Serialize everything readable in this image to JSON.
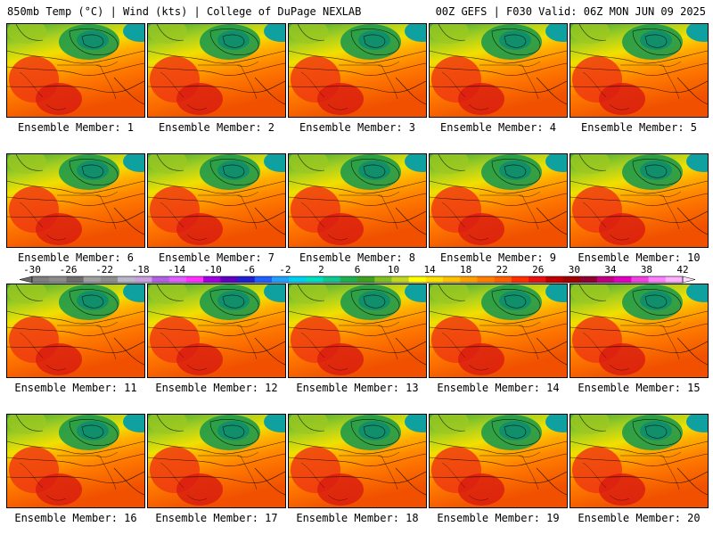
{
  "header": {
    "left": "850mb Temp (°C) | Wind (kts) | College of DuPage NEXLAB",
    "right": "00Z GEFS | F030 Valid: 06Z MON JUN 09 2025"
  },
  "panels": [
    "Ensemble Member: 1",
    "Ensemble Member: 2",
    "Ensemble Member: 3",
    "Ensemble Member: 4",
    "Ensemble Member: 5",
    "Ensemble Member: 6",
    "Ensemble Member: 7",
    "Ensemble Member: 8",
    "Ensemble Member: 9",
    "Ensemble Member: 10",
    "Ensemble Member: 11",
    "Ensemble Member: 12",
    "Ensemble Member: 13",
    "Ensemble Member: 14",
    "Ensemble Member: 15",
    "Ensemble Member: 16",
    "Ensemble Member: 17",
    "Ensemble Member: 18",
    "Ensemble Member: 19",
    "Ensemble Member: 20"
  ],
  "colorbar": {
    "ticks": [
      "-30",
      "-26",
      "-22",
      "-18",
      "-14",
      "-10",
      "-6",
      "-2",
      "2",
      "6",
      "10",
      "14",
      "18",
      "22",
      "26",
      "30",
      "34",
      "38",
      "42"
    ],
    "colors": [
      "#7f7f7f",
      "#8c8c8c",
      "#6e6e6e",
      "#a0a0a0",
      "#8e8e8e",
      "#b8b8c8",
      "#c8a0e0",
      "#b060e0",
      "#e060ff",
      "#ff30ff",
      "#a000e0",
      "#6000c0",
      "#2020d0",
      "#2060ff",
      "#20a0ff",
      "#00d0f0",
      "#00e0c0",
      "#10c890",
      "#20b050",
      "#40a020",
      "#80c020",
      "#c0d820",
      "#ffff00",
      "#ffe000",
      "#ffc000",
      "#ffa000",
      "#ff8000",
      "#ff6000",
      "#ff3000",
      "#e81010",
      "#c00000",
      "#a00000",
      "#900030",
      "#c00080",
      "#e000c0",
      "#f040e0",
      "#ff80ff",
      "#ffb0ff"
    ]
  }
}
